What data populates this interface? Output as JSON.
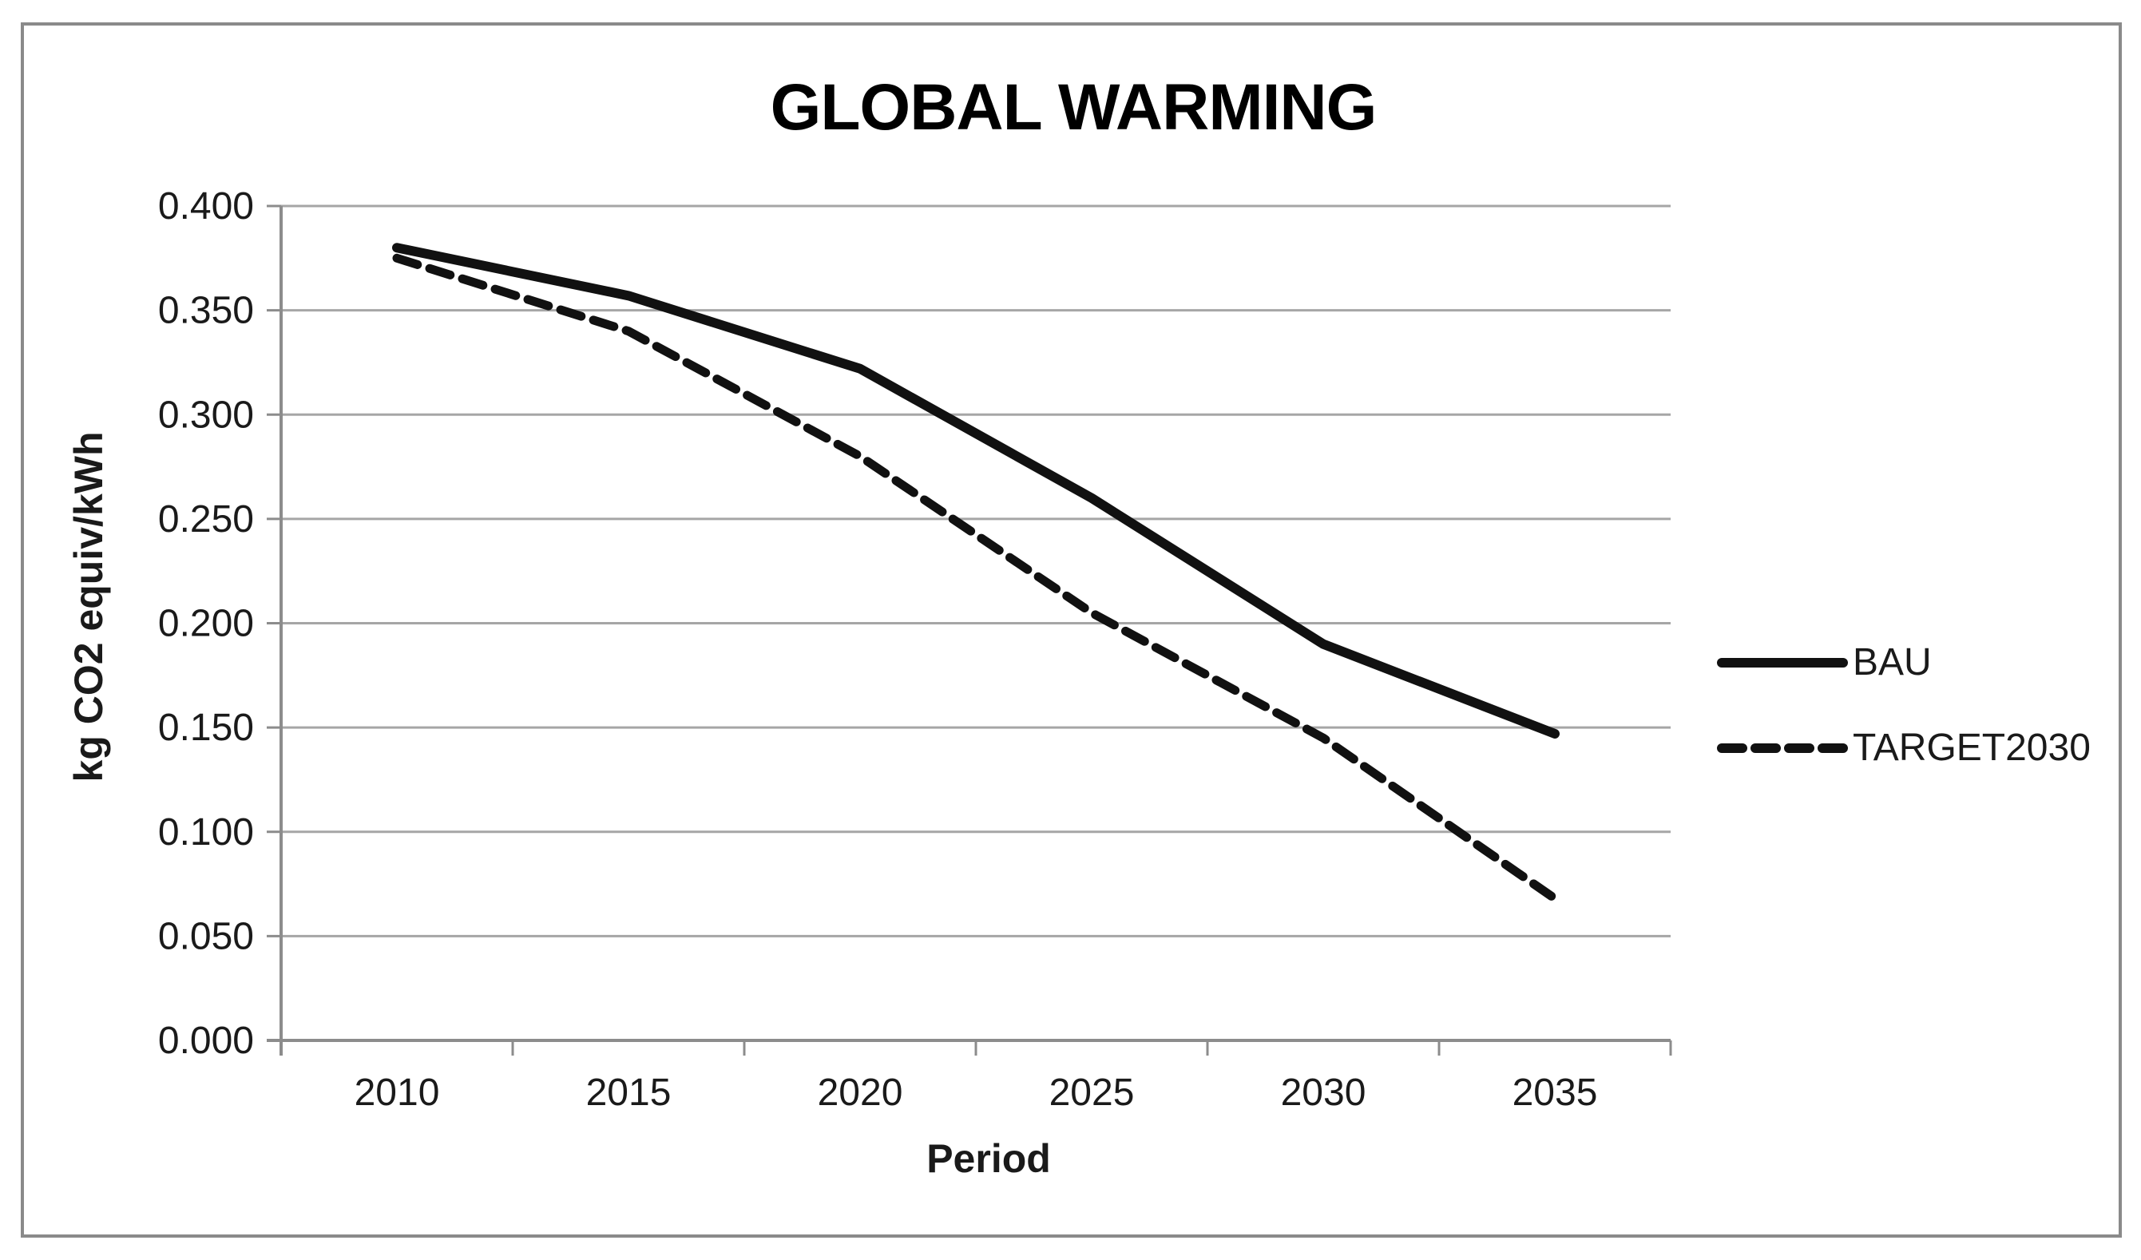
{
  "chart_data": {
    "type": "line",
    "title": "GLOBAL WARMING",
    "xlabel": "Period",
    "ylabel": "kg CO2 equiv/kWh",
    "x": [
      2010,
      2015,
      2020,
      2025,
      2030,
      2035
    ],
    "series": [
      {
        "name": "BAU",
        "line_style": "solid",
        "values": [
          0.38,
          0.357,
          0.322,
          0.26,
          0.19,
          0.147
        ]
      },
      {
        "name": "TARGET2030",
        "line_style": "dashed",
        "values": [
          0.375,
          0.34,
          0.28,
          0.205,
          0.145,
          0.068
        ]
      }
    ],
    "ylim": [
      0.0,
      0.4
    ],
    "ytick_step": 0.05,
    "ytick_decimals": 3,
    "grid": "horizontal",
    "legend_position": "right",
    "colors": {
      "series_line": "#111111",
      "gridline": "#a6a6a6",
      "axis_line": "#8c8c8c",
      "frame_border": "#8a8a8a",
      "text": "#1a1a1a"
    }
  }
}
